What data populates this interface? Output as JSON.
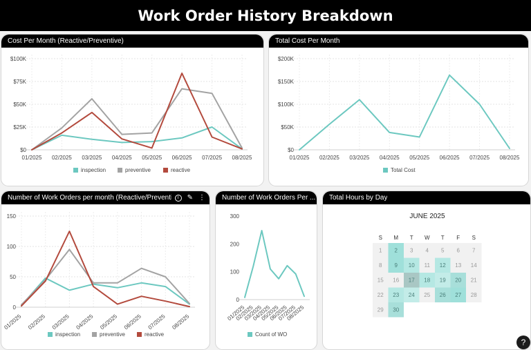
{
  "page": {
    "title": "Work Order History Breakdown"
  },
  "colors": {
    "inspection": "#6cc8c0",
    "preventive": "#a3a3a3",
    "reactive": "#b34a3d",
    "total": "#6cc8c0",
    "header_bg": "#000000"
  },
  "panels": {
    "cost_per_month": {
      "title": "Cost Per Month (Reactive/Preventive)"
    },
    "total_cost": {
      "title": "Total Cost Per Month"
    },
    "wo_per_month": {
      "title": "Number of Work Orders per month (Reactive/Preventive)"
    },
    "wo_per": {
      "title": "Number of Work Orders Per ..."
    },
    "hours_by_day": {
      "title": "Total Hours by Day"
    }
  },
  "chart_data": [
    {
      "id": "cost_per_month",
      "type": "line",
      "categories": [
        "01/2025",
        "02/2025",
        "03/2025",
        "04/2025",
        "05/2025",
        "06/2025",
        "07/2025",
        "08/2025"
      ],
      "ylim": [
        0,
        100000
      ],
      "yticks": [
        "$0",
        "$25K",
        "$50K",
        "$75K",
        "$100K"
      ],
      "grid": true,
      "legend": "bottom",
      "series": [
        {
          "name": "inspection",
          "values": [
            0,
            16000,
            11500,
            8000,
            9000,
            13000,
            25000,
            1000
          ]
        },
        {
          "name": "preventive",
          "values": [
            0,
            24000,
            56000,
            17000,
            18500,
            67000,
            62000,
            2000
          ]
        },
        {
          "name": "reactive",
          "values": [
            0,
            18500,
            41000,
            12000,
            2000,
            84000,
            14000,
            1000
          ]
        }
      ]
    },
    {
      "id": "total_cost",
      "type": "line",
      "categories": [
        "01/2025",
        "02/2025",
        "03/2025",
        "04/2025",
        "05/2025",
        "06/2025",
        "07/2025",
        "08/2025"
      ],
      "ylim": [
        0,
        200000
      ],
      "yticks": [
        "$0",
        "$50K",
        "$100K",
        "$150K",
        "$200K"
      ],
      "grid": true,
      "legend": "bottom",
      "series": [
        {
          "name": "Total Cost",
          "values": [
            0,
            56000,
            110000,
            38000,
            28000,
            164000,
            100000,
            3000
          ]
        }
      ]
    },
    {
      "id": "wo_per_month",
      "type": "line",
      "categories": [
        "01/2025",
        "02/2025",
        "03/2025",
        "04/2025",
        "05/2025",
        "06/2025",
        "07/2025",
        "08/2025"
      ],
      "ylim": [
        0,
        150
      ],
      "yticks": [
        "0",
        "50",
        "100",
        "150"
      ],
      "grid": true,
      "legend": "bottom",
      "series": [
        {
          "name": "inspection",
          "values": [
            3,
            48,
            28,
            38,
            32,
            40,
            34,
            5
          ]
        },
        {
          "name": "preventive",
          "values": [
            4,
            45,
            95,
            40,
            40,
            64,
            50,
            6
          ]
        },
        {
          "name": "reactive",
          "values": [
            2,
            43,
            125,
            34,
            5,
            18,
            10,
            1
          ]
        }
      ]
    },
    {
      "id": "wo_per",
      "type": "line",
      "categories": [
        "01/2025",
        "02/2025",
        "03/2025",
        "04/2025",
        "05/2025",
        "06/2025",
        "07/2025",
        "08/2025"
      ],
      "ylim": [
        0,
        300
      ],
      "yticks": [
        "0",
        "100",
        "200",
        "300"
      ],
      "grid": false,
      "legend": "bottom",
      "series": [
        {
          "name": "Count of WO",
          "values": [
            8,
            120,
            248,
            110,
            75,
            122,
            92,
            12
          ]
        }
      ]
    },
    {
      "id": "hours_by_day",
      "type": "heatmap",
      "title": "JUNE 2025",
      "weekdays": [
        "S",
        "M",
        "T",
        "W",
        "T",
        "F",
        "S"
      ],
      "weeks": [
        [
          1,
          2,
          3,
          4,
          5,
          6,
          7
        ],
        [
          8,
          9,
          10,
          11,
          12,
          13,
          14
        ],
        [
          15,
          16,
          17,
          18,
          19,
          20,
          21
        ],
        [
          22,
          23,
          24,
          25,
          26,
          27,
          28
        ],
        [
          29,
          30,
          null,
          null,
          null,
          null,
          null
        ]
      ],
      "intensity": [
        [
          0,
          0.6,
          0,
          0,
          0,
          0,
          0
        ],
        [
          0,
          0.6,
          0.5,
          0,
          0.5,
          0,
          0
        ],
        [
          0,
          0,
          0.9,
          0.5,
          0.4,
          0.8,
          0
        ],
        [
          0,
          0.5,
          0.4,
          0,
          0.8,
          0.6,
          0
        ],
        [
          0,
          0.7,
          null,
          null,
          null,
          null,
          null
        ]
      ]
    }
  ],
  "help": {
    "label": "?"
  }
}
